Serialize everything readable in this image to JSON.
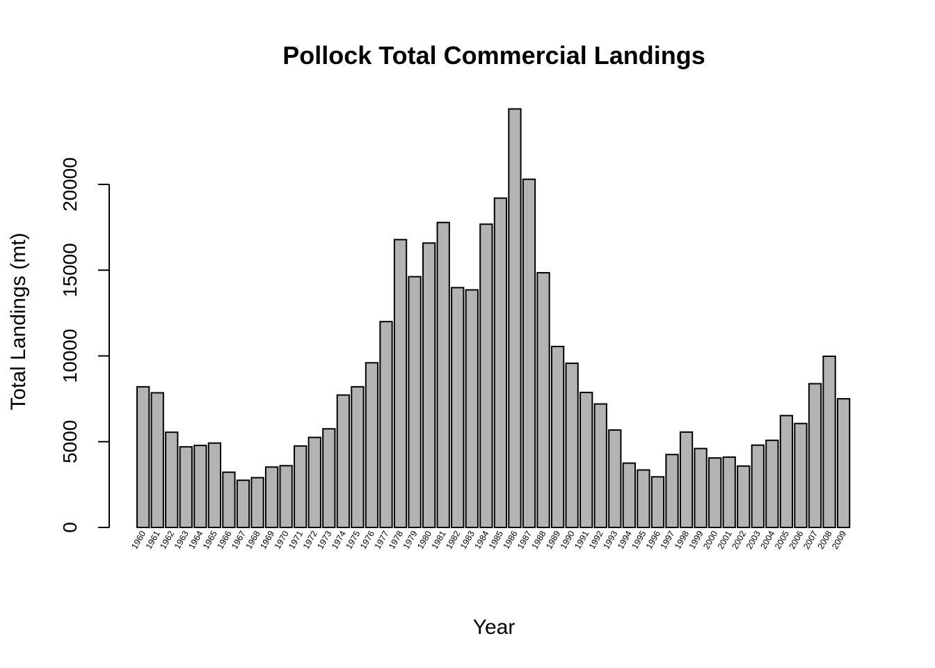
{
  "chart_data": {
    "type": "bar",
    "title": "Pollock Total Commercial Landings",
    "xlabel": "Year",
    "ylabel": "Total Landings (mt)",
    "yticks": [
      "0",
      "5000",
      "10000",
      "15000",
      "20000"
    ],
    "ylim": [
      0,
      24500
    ],
    "bar_color": "#b3b3b3",
    "grid": false,
    "categories": [
      "1960",
      "1961",
      "1962",
      "1963",
      "1964",
      "1965",
      "1966",
      "1967",
      "1968",
      "1969",
      "1970",
      "1971",
      "1972",
      "1973",
      "1974",
      "1975",
      "1976",
      "1977",
      "1978",
      "1979",
      "1980",
      "1981",
      "1982",
      "1983",
      "1984",
      "1985",
      "1986",
      "1987",
      "1988",
      "1989",
      "1990",
      "1991",
      "1992",
      "1993",
      "1994",
      "1995",
      "1996",
      "1997",
      "1998",
      "1999",
      "2000",
      "2001",
      "2002",
      "2003",
      "2004",
      "2005",
      "2006",
      "2007",
      "2008",
      "2009"
    ],
    "values": [
      8200,
      7850,
      5550,
      4700,
      4780,
      4920,
      3220,
      2750,
      2900,
      3520,
      3600,
      4750,
      5250,
      5750,
      7720,
      8200,
      9600,
      12000,
      16780,
      14620,
      16580,
      17780,
      13980,
      13850,
      17680,
      19200,
      24400,
      20300,
      14850,
      10550,
      9570,
      7870,
      7200,
      5680,
      3750,
      3350,
      2950,
      4250,
      5560,
      4600,
      4050,
      4100,
      3580,
      4800,
      5080,
      6520,
      6060,
      8380,
      9980,
      7500
    ]
  }
}
